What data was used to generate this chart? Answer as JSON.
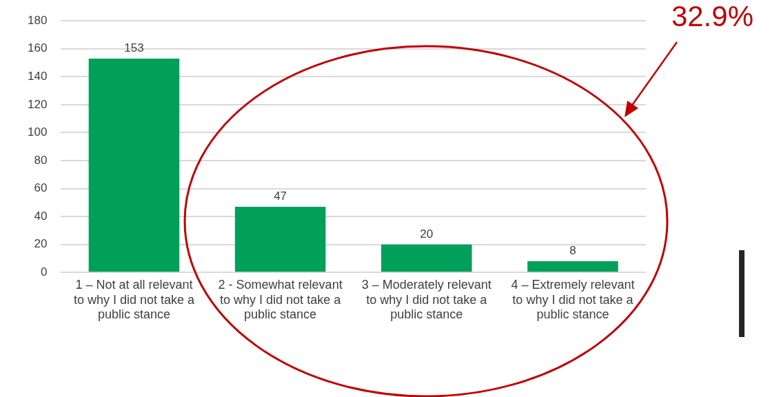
{
  "chart_data": {
    "type": "bar",
    "categories": [
      "1 – Not at all relevant to why I did not take a public stance",
      "2 - Somewhat relevant to why I did not take a public stance",
      "3 – Moderately relevant to why I did not take a public stance",
      "4 – Extremely relevant to why I did not take a public stance"
    ],
    "values": [
      153,
      47,
      20,
      8
    ],
    "color": "#00a05a",
    "ylim": [
      0,
      180
    ],
    "yticks": [
      0,
      20,
      40,
      60,
      80,
      100,
      120,
      140,
      160,
      180
    ],
    "grid": "y",
    "legend": false,
    "data_labels": true,
    "annotations": [
      "32.9%"
    ]
  }
}
